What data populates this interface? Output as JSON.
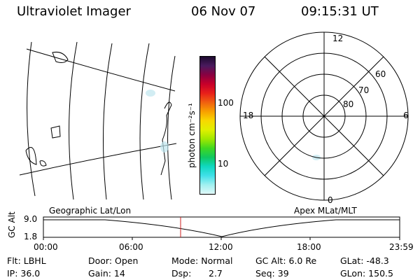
{
  "header": {
    "title": "Ultraviolet Imager",
    "date": "06 Nov 07",
    "time": "09:15:31 UT"
  },
  "colorbar": {
    "unit_label": "photon cm⁻²s⁻¹",
    "tick_100": "100",
    "tick_10": "10",
    "colors": [
      "#1c0a2e",
      "#4a1a5e",
      "#8a0040",
      "#c8002a",
      "#e8201a",
      "#f06010",
      "#f8a000",
      "#f8d800",
      "#e0f000",
      "#a0e800",
      "#40d820",
      "#10c860",
      "#10d8c0",
      "#40e0e8",
      "#a0f0f0",
      "#e0f8f8"
    ]
  },
  "polar": {
    "labels": {
      "top": "12",
      "right": "6",
      "bottom": "0",
      "left": "18"
    },
    "rings": [
      "60",
      "70",
      "80"
    ]
  },
  "map": {
    "panel": "geographic-map"
  },
  "timeline": {
    "left_title": "Geographic Lat/Lon",
    "right_title": "Apex MLat/MLT",
    "y_label": "GC Alt",
    "y_top": "9.0",
    "y_bottom": "1.8",
    "x_ticks": [
      "00:00",
      "06:00",
      "12:00",
      "18:00",
      "23:59"
    ],
    "marker_color": "#cc2222"
  },
  "info": {
    "flt": "Flt: LBHL",
    "ip": "IP: 36.0",
    "door": "Door: Open",
    "gain": "Gain: 14",
    "mode": "Mode: Normal",
    "dsp_label": "Dsp:",
    "dsp_value": "2.7",
    "gcalt": "GC Alt: 6.0 Re",
    "seq": "Seq: 39",
    "glat": "GLat: -48.3",
    "glon": "GLon: 150.5"
  }
}
